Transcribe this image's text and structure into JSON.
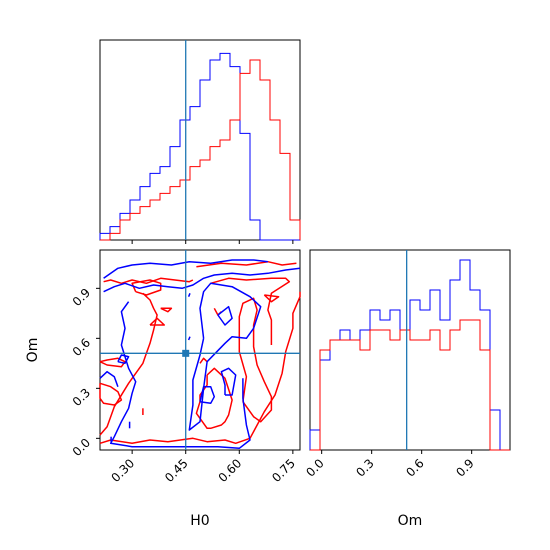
{
  "chart_data": {
    "type": "corner",
    "parameters": [
      "H0",
      "Om"
    ],
    "truth": {
      "H0": 0.45,
      "Om": 0.51
    },
    "colors": {
      "blue": "#0000ff",
      "red": "#ff0000",
      "truth": "#1f77b4"
    },
    "axes": {
      "H0": {
        "lim": [
          0.21,
          0.77
        ],
        "ticks": [
          0.3,
          0.45,
          0.6,
          0.75
        ],
        "tick_labels": [
          "0.30",
          "0.45",
          "0.60",
          "0.75"
        ]
      },
      "Om": {
        "lim": [
          -0.07,
          1.13
        ],
        "ticks": [
          0.0,
          0.3,
          0.6,
          0.9
        ],
        "tick_labels": [
          "0.0",
          "0.3",
          "0.6",
          "0.9"
        ]
      }
    },
    "hist_H0": {
      "edges": [
        0.21,
        0.238,
        0.266,
        0.294,
        0.322,
        0.35,
        0.378,
        0.406,
        0.434,
        0.462,
        0.49,
        0.518,
        0.546,
        0.574,
        0.602,
        0.63,
        0.658,
        0.686,
        0.714,
        0.742,
        0.77
      ],
      "ymax": 30,
      "series": [
        {
          "color": "blue",
          "values": [
            1,
            2,
            4,
            6,
            8,
            10,
            11,
            14,
            18,
            20,
            24,
            27,
            28,
            26,
            16,
            3,
            0,
            0,
            0,
            0
          ]
        },
        {
          "color": "red",
          "values": [
            0,
            1,
            3,
            4,
            5,
            6,
            7,
            8,
            9,
            11,
            12,
            14,
            15,
            18,
            25,
            27,
            24,
            18,
            13,
            3
          ]
        }
      ]
    },
    "hist_Om": {
      "edges": [
        -0.07,
        -0.01,
        0.05,
        0.11,
        0.17,
        0.23,
        0.29,
        0.35,
        0.41,
        0.47,
        0.53,
        0.59,
        0.65,
        0.71,
        0.77,
        0.83,
        0.89,
        0.95,
        1.01,
        1.07,
        1.13
      ],
      "ymax": 20,
      "series": [
        {
          "color": "blue",
          "values": [
            2,
            9,
            11,
            12,
            11,
            12,
            14,
            13,
            14,
            12,
            15,
            14,
            16,
            13,
            17,
            19,
            16,
            14,
            4,
            0
          ]
        },
        {
          "color": "red",
          "values": [
            0,
            10,
            11,
            11,
            11,
            10,
            12,
            12,
            11,
            12,
            11,
            11,
            12,
            10,
            12,
            13,
            13,
            10,
            0,
            0
          ]
        }
      ]
    },
    "contours": [
      {
        "color": "red",
        "points": [
          [
            0.22,
            0.94
          ],
          [
            0.24,
            0.95
          ],
          [
            0.27,
            0.93
          ],
          [
            0.3,
            0.95
          ],
          [
            0.34,
            0.93
          ],
          [
            0.38,
            0.96
          ],
          [
            0.42,
            0.95
          ],
          [
            0.46,
            0.94
          ],
          [
            0.47,
            0.95
          ]
        ]
      },
      {
        "color": "red",
        "points": [
          [
            0.48,
            1.03
          ],
          [
            0.55,
            1.05
          ],
          [
            0.62,
            1.04
          ],
          [
            0.68,
            1.06
          ],
          [
            0.72,
            1.04
          ],
          [
            0.76,
            1.05
          ]
        ]
      },
      {
        "color": "red",
        "points": [
          [
            0.21,
            0.46
          ],
          [
            0.23,
            0.44
          ],
          [
            0.27,
            0.43
          ],
          [
            0.28,
            0.46
          ],
          [
            0.26,
            0.48
          ],
          [
            0.23,
            0.47
          ],
          [
            0.21,
            0.46
          ]
        ]
      },
      {
        "color": "red",
        "points": [
          [
            0.33,
            0.87
          ],
          [
            0.35,
            0.83
          ],
          [
            0.36,
            0.78
          ],
          [
            0.37,
            0.74
          ],
          [
            0.36,
            0.65
          ],
          [
            0.35,
            0.57
          ],
          [
            0.34,
            0.51
          ],
          [
            0.33,
            0.45
          ],
          [
            0.29,
            0.33
          ],
          [
            0.25,
            0.19
          ],
          [
            0.23,
            0.07
          ],
          [
            0.21,
            0.02
          ]
        ]
      },
      {
        "color": "red",
        "points": [
          [
            0.21,
            0.33
          ],
          [
            0.24,
            0.31
          ],
          [
            0.26,
            0.28
          ],
          [
            0.27,
            0.23
          ],
          [
            0.25,
            0.2
          ],
          [
            0.22,
            0.21
          ],
          [
            0.21,
            0.24
          ],
          [
            0.21,
            0.33
          ]
        ]
      },
      {
        "color": "red",
        "points": [
          [
            0.31,
            0.88
          ],
          [
            0.3,
            0.93
          ],
          [
            0.35,
            0.95
          ],
          [
            0.38,
            0.93
          ],
          [
            0.38,
            0.89
          ],
          [
            0.34,
            0.86
          ],
          [
            0.31,
            0.88
          ]
        ]
      },
      {
        "color": "red",
        "points": [
          [
            0.38,
            0.78
          ],
          [
            0.4,
            0.76
          ],
          [
            0.41,
            0.78
          ],
          [
            0.38,
            0.78
          ]
        ]
      },
      {
        "color": "red",
        "points": [
          [
            0.35,
            0.68
          ],
          [
            0.37,
            0.72
          ],
          [
            0.39,
            0.68
          ],
          [
            0.35,
            0.68
          ]
        ]
      },
      {
        "color": "red",
        "points": [
          [
            0.33,
            0.18
          ],
          [
            0.33,
            0.14
          ]
        ]
      },
      {
        "color": "red",
        "points": [
          [
            0.21,
            -0.03
          ],
          [
            0.24,
            -0.01
          ],
          [
            0.3,
            -0.03
          ],
          [
            0.35,
            -0.01
          ],
          [
            0.4,
            -0.02
          ],
          [
            0.47,
            0.0
          ],
          [
            0.51,
            -0.02
          ],
          [
            0.56,
            -0.01
          ],
          [
            0.59,
            -0.03
          ],
          [
            0.63,
            0.0
          ],
          [
            0.67,
            0.16
          ],
          [
            0.7,
            0.26
          ],
          [
            0.72,
            0.39
          ],
          [
            0.73,
            0.52
          ],
          [
            0.75,
            0.66
          ],
          [
            0.75,
            0.75
          ],
          [
            0.77,
            0.85
          ],
          [
            0.77,
            0.88
          ]
        ]
      },
      {
        "color": "red",
        "points": [
          [
            0.69,
            0.56
          ],
          [
            0.69,
            0.71
          ],
          [
            0.68,
            0.77
          ],
          [
            0.69,
            0.87
          ],
          [
            0.74,
            0.94
          ],
          [
            0.73,
            0.96
          ],
          [
            0.69,
            0.96
          ],
          [
            0.62,
            0.95
          ],
          [
            0.57,
            0.96
          ],
          [
            0.52,
            0.93
          ]
        ]
      },
      {
        "color": "red",
        "points": [
          [
            0.51,
            0.38
          ],
          [
            0.53,
            0.42
          ],
          [
            0.56,
            0.36
          ],
          [
            0.58,
            0.23
          ],
          [
            0.57,
            0.14
          ],
          [
            0.56,
            0.1
          ],
          [
            0.55,
            0.08
          ],
          [
            0.52,
            0.06
          ],
          [
            0.51,
            0.06
          ],
          [
            0.48,
            0.15
          ],
          [
            0.49,
            0.22
          ],
          [
            0.49,
            0.26
          ],
          [
            0.51,
            0.32
          ],
          [
            0.51,
            0.38
          ]
        ]
      },
      {
        "color": "red",
        "points": [
          [
            0.61,
            0.22
          ],
          [
            0.62,
            0.37
          ],
          [
            0.6,
            0.52
          ],
          [
            0.6,
            0.65
          ],
          [
            0.6,
            0.73
          ],
          [
            0.61,
            0.81
          ],
          [
            0.64,
            0.84
          ],
          [
            0.65,
            0.77
          ],
          [
            0.64,
            0.68
          ],
          [
            0.64,
            0.55
          ],
          [
            0.65,
            0.44
          ],
          [
            0.67,
            0.34
          ],
          [
            0.69,
            0.25
          ],
          [
            0.69,
            0.17
          ],
          [
            0.66,
            0.1
          ],
          [
            0.64,
            0.13
          ],
          [
            0.61,
            0.22
          ]
        ]
      },
      {
        "color": "red",
        "points": [
          [
            0.49,
            0.45
          ],
          [
            0.5,
            0.48
          ],
          [
            0.51,
            0.46
          ]
        ]
      },
      {
        "color": "red",
        "points": [
          [
            0.53,
            0.78
          ],
          [
            0.54,
            0.74
          ],
          [
            0.55,
            0.76
          ]
        ]
      },
      {
        "color": "red",
        "points": [
          [
            0.67,
            0.86
          ],
          [
            0.69,
            0.82
          ],
          [
            0.71,
            0.85
          ],
          [
            0.67,
            0.86
          ]
        ]
      },
      {
        "color": "blue",
        "points": [
          [
            0.22,
            0.88
          ],
          [
            0.25,
            0.91
          ],
          [
            0.28,
            0.93
          ],
          [
            0.32,
            0.9
          ],
          [
            0.36,
            0.92
          ],
          [
            0.4,
            0.91
          ],
          [
            0.44,
            0.9
          ],
          [
            0.47,
            0.92
          ],
          [
            0.5,
            0.96
          ],
          [
            0.53,
            0.98
          ],
          [
            0.58,
            0.99
          ],
          [
            0.63,
            0.98
          ],
          [
            0.68,
            0.99
          ],
          [
            0.73,
            1.01
          ],
          [
            0.77,
            1.02
          ]
        ]
      },
      {
        "color": "blue",
        "points": [
          [
            0.22,
            0.96
          ],
          [
            0.26,
            1.02
          ],
          [
            0.3,
            1.04
          ],
          [
            0.35,
            1.05
          ],
          [
            0.41,
            1.04
          ],
          [
            0.46,
            1.06
          ],
          [
            0.52,
            1.05
          ],
          [
            0.58,
            1.07
          ],
          [
            0.64,
            1.07
          ],
          [
            0.68,
            1.06
          ]
        ]
      },
      {
        "color": "blue",
        "points": [
          [
            0.26,
            0.46
          ],
          [
            0.27,
            0.5
          ],
          [
            0.29,
            0.49
          ],
          [
            0.28,
            0.45
          ],
          [
            0.26,
            0.46
          ]
        ]
      },
      {
        "color": "blue",
        "points": [
          [
            0.29,
            0.82
          ],
          [
            0.27,
            0.76
          ],
          [
            0.28,
            0.66
          ],
          [
            0.27,
            0.56
          ],
          [
            0.29,
            0.42
          ],
          [
            0.31,
            0.34
          ],
          [
            0.3,
            0.27
          ],
          [
            0.29,
            0.18
          ],
          [
            0.27,
            0.1
          ],
          [
            0.25,
            0.01
          ],
          [
            0.24,
            -0.03
          ],
          [
            0.3,
            -0.05
          ],
          [
            0.38,
            -0.05
          ],
          [
            0.46,
            -0.05
          ],
          [
            0.54,
            -0.05
          ],
          [
            0.6,
            -0.06
          ],
          [
            0.63,
            -0.01
          ],
          [
            0.62,
            0.08
          ],
          [
            0.61,
            0.24
          ],
          [
            0.61,
            0.36
          ]
        ]
      },
      {
        "color": "blue",
        "points": [
          [
            0.49,
            0.22
          ],
          [
            0.5,
            0.31
          ],
          [
            0.52,
            0.31
          ],
          [
            0.53,
            0.25
          ],
          [
            0.52,
            0.21
          ],
          [
            0.49,
            0.22
          ]
        ]
      },
      {
        "color": "blue",
        "points": [
          [
            0.56,
            0.26
          ],
          [
            0.56,
            0.32
          ],
          [
            0.55,
            0.4
          ],
          [
            0.57,
            0.42
          ],
          [
            0.59,
            0.38
          ],
          [
            0.58,
            0.26
          ],
          [
            0.56,
            0.26
          ]
        ]
      },
      {
        "color": "blue",
        "points": [
          [
            0.5,
            0.6
          ],
          [
            0.49,
            0.78
          ],
          [
            0.5,
            0.88
          ],
          [
            0.52,
            0.93
          ],
          [
            0.58,
            0.91
          ],
          [
            0.63,
            0.85
          ],
          [
            0.66,
            0.79
          ],
          [
            0.64,
            0.66
          ],
          [
            0.62,
            0.6
          ],
          [
            0.58,
            0.61
          ],
          [
            0.56,
            0.57
          ],
          [
            0.51,
            0.46
          ],
          [
            0.5,
            0.3
          ],
          [
            0.49,
            0.1
          ],
          [
            0.46,
            0.05
          ],
          [
            0.47,
            0.2
          ],
          [
            0.47,
            0.35
          ],
          [
            0.49,
            0.5
          ],
          [
            0.5,
            0.6
          ]
        ]
      },
      {
        "color": "blue",
        "points": [
          [
            0.54,
            0.74
          ],
          [
            0.57,
            0.79
          ],
          [
            0.58,
            0.72
          ],
          [
            0.56,
            0.68
          ],
          [
            0.54,
            0.74
          ]
        ]
      },
      {
        "color": "blue",
        "points": [
          [
            0.21,
            0.36
          ],
          [
            0.23,
            0.4
          ],
          [
            0.25,
            0.37
          ],
          [
            0.26,
            0.31
          ]
        ]
      },
      {
        "color": "blue",
        "points": [
          [
            0.293,
            0.06
          ],
          [
            0.293,
            0.1
          ]
        ]
      },
      {
        "color": "blue",
        "points": [
          [
            0.241,
            -0.02
          ],
          [
            0.241,
            0.01
          ]
        ]
      },
      {
        "color": "blue",
        "points": [
          [
            0.458,
            0.59
          ],
          [
            0.462,
            0.61
          ]
        ]
      },
      {
        "color": "blue",
        "points": [
          [
            0.458,
            0.85
          ],
          [
            0.462,
            0.87
          ]
        ]
      }
    ]
  }
}
